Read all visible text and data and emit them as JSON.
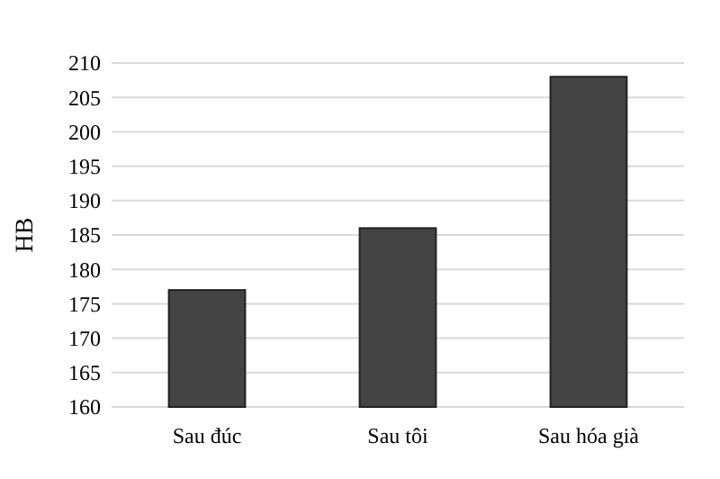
{
  "chart_data": {
    "type": "bar",
    "ylabel": "HB",
    "categories": [
      "Sau đúc",
      "Sau tôi",
      "Sau hóa già"
    ],
    "values": [
      177,
      186,
      208
    ],
    "color": "#444444",
    "ylim": [
      160,
      210
    ],
    "yticks": [
      160,
      165,
      170,
      175,
      180,
      185,
      190,
      195,
      200,
      205,
      210
    ],
    "grid": "y"
  }
}
